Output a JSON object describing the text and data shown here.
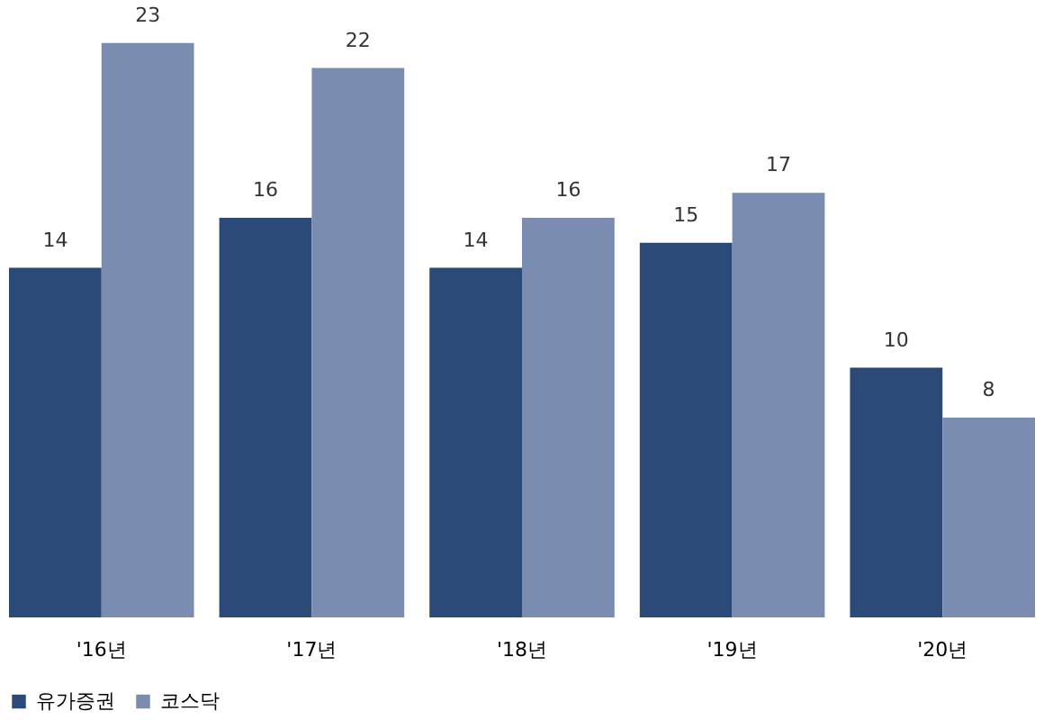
{
  "chart_data": {
    "type": "bar",
    "categories": [
      "'16년",
      "'17년",
      "'18년",
      "'19년",
      "'20년"
    ],
    "series": [
      {
        "name": "유가증권",
        "color": "#2b4a78",
        "values": [
          14,
          16,
          14,
          15,
          10
        ]
      },
      {
        "name": "코스닥",
        "color": "#7a8db1",
        "values": [
          23,
          22,
          16,
          17,
          8
        ]
      }
    ],
    "data_labels": true,
    "legend": "bottom",
    "grid": false
  }
}
